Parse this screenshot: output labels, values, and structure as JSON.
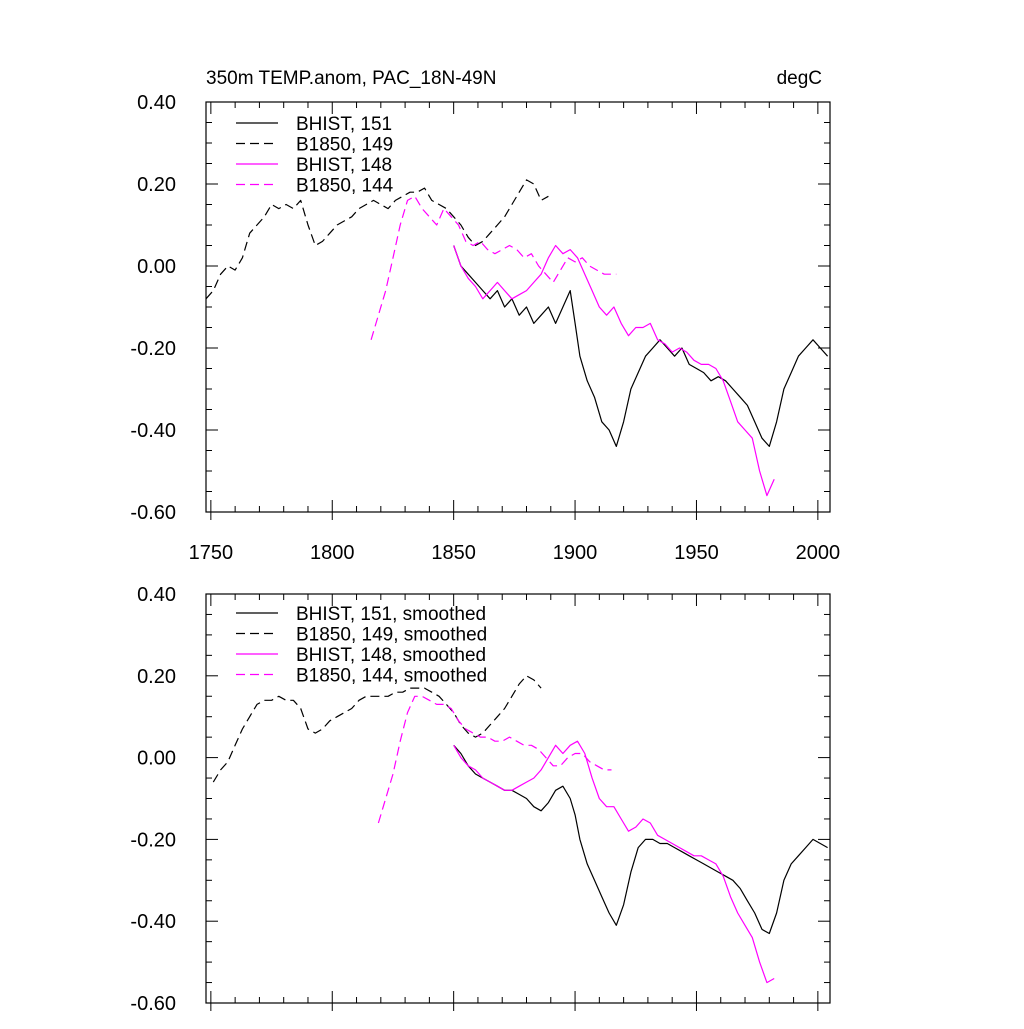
{
  "chart_data": [
    {
      "type": "line",
      "title": "350m TEMP.anom, PAC_18N-49N",
      "units": "degC",
      "xlim": [
        1748,
        2005
      ],
      "ylim": [
        -0.6,
        0.4
      ],
      "xticks": [
        "1750",
        "1800",
        "1850",
        "1900",
        "1950",
        "2000"
      ],
      "yticks": [
        "-0.60",
        "-0.40",
        "-0.20",
        "0.00",
        "0.20",
        "0.40"
      ],
      "show_xtick_labels": true,
      "legend_position": "top-left",
      "series": [
        {
          "name": "BHIST, 151",
          "color": "#000000",
          "dash": "solid",
          "x": [
            1850,
            1853,
            1856,
            1859,
            1862,
            1865,
            1868,
            1871,
            1874,
            1877,
            1880,
            1883,
            1886,
            1889,
            1892,
            1895,
            1898,
            1900,
            1902,
            1905,
            1908,
            1911,
            1914,
            1917,
            1920,
            1923,
            1926,
            1929,
            1932,
            1935,
            1938,
            1941,
            1944,
            1947,
            1950,
            1953,
            1956,
            1959,
            1962,
            1965,
            1968,
            1971,
            1974,
            1977,
            1980,
            1983,
            1986,
            1989,
            1992,
            1995,
            1998,
            2001,
            2004
          ],
          "y": [
            0.05,
            0.0,
            -0.02,
            -0.04,
            -0.06,
            -0.08,
            -0.06,
            -0.1,
            -0.08,
            -0.12,
            -0.1,
            -0.14,
            -0.12,
            -0.1,
            -0.14,
            -0.1,
            -0.06,
            -0.14,
            -0.22,
            -0.28,
            -0.32,
            -0.38,
            -0.4,
            -0.44,
            -0.38,
            -0.3,
            -0.26,
            -0.22,
            -0.2,
            -0.18,
            -0.2,
            -0.22,
            -0.2,
            -0.24,
            -0.25,
            -0.26,
            -0.28,
            -0.27,
            -0.28,
            -0.3,
            -0.32,
            -0.34,
            -0.38,
            -0.42,
            -0.44,
            -0.38,
            -0.3,
            -0.26,
            -0.22,
            -0.2,
            -0.18,
            -0.2,
            -0.22
          ]
        },
        {
          "name": "B1850, 149",
          "color": "#000000",
          "dash": "dashed",
          "x": [
            1748,
            1751,
            1754,
            1757,
            1760,
            1763,
            1766,
            1769,
            1772,
            1775,
            1778,
            1781,
            1784,
            1787,
            1790,
            1793,
            1796,
            1799,
            1802,
            1805,
            1808,
            1811,
            1814,
            1817,
            1820,
            1823,
            1826,
            1829,
            1832,
            1835,
            1838,
            1841,
            1844,
            1847,
            1850,
            1853,
            1856,
            1859,
            1862,
            1865,
            1868,
            1871,
            1874,
            1877,
            1880,
            1883,
            1886,
            1889
          ],
          "y": [
            -0.08,
            -0.06,
            -0.02,
            0.0,
            -0.01,
            0.02,
            0.08,
            0.1,
            0.12,
            0.15,
            0.14,
            0.15,
            0.14,
            0.16,
            0.1,
            0.05,
            0.06,
            0.08,
            0.1,
            0.11,
            0.12,
            0.14,
            0.15,
            0.16,
            0.15,
            0.14,
            0.16,
            0.17,
            0.18,
            0.18,
            0.19,
            0.16,
            0.15,
            0.14,
            0.12,
            0.1,
            0.07,
            0.05,
            0.06,
            0.08,
            0.1,
            0.12,
            0.15,
            0.18,
            0.21,
            0.2,
            0.16,
            0.17
          ]
        },
        {
          "name": "BHIST, 148",
          "color": "#ff00ff",
          "dash": "solid",
          "x": [
            1850,
            1853,
            1856,
            1859,
            1862,
            1865,
            1868,
            1871,
            1874,
            1877,
            1880,
            1883,
            1886,
            1889,
            1892,
            1895,
            1898,
            1901,
            1904,
            1907,
            1910,
            1913,
            1916,
            1919,
            1922,
            1925,
            1928,
            1931,
            1934,
            1937,
            1940,
            1943,
            1946,
            1949,
            1952,
            1955,
            1958,
            1961,
            1964,
            1967,
            1970,
            1973,
            1976,
            1979,
            1982
          ],
          "y": [
            0.05,
            0.0,
            -0.03,
            -0.05,
            -0.08,
            -0.06,
            -0.04,
            -0.06,
            -0.08,
            -0.07,
            -0.06,
            -0.04,
            -0.02,
            0.02,
            0.05,
            0.03,
            0.04,
            0.02,
            -0.02,
            -0.06,
            -0.1,
            -0.12,
            -0.1,
            -0.14,
            -0.17,
            -0.15,
            -0.15,
            -0.14,
            -0.18,
            -0.19,
            -0.21,
            -0.2,
            -0.21,
            -0.23,
            -0.24,
            -0.24,
            -0.25,
            -0.28,
            -0.33,
            -0.38,
            -0.4,
            -0.42,
            -0.5,
            -0.56,
            -0.52
          ]
        },
        {
          "name": "B1850, 144",
          "color": "#ff00ff",
          "dash": "dashed",
          "x": [
            1816,
            1819,
            1822,
            1825,
            1828,
            1831,
            1834,
            1837,
            1840,
            1843,
            1846,
            1849,
            1852,
            1855,
            1858,
            1861,
            1864,
            1867,
            1870,
            1873,
            1876,
            1879,
            1882,
            1885,
            1888,
            1891,
            1894,
            1897,
            1900,
            1903,
            1906,
            1909,
            1912,
            1915,
            1917
          ],
          "y": [
            -0.18,
            -0.12,
            -0.06,
            0.02,
            0.1,
            0.16,
            0.17,
            0.14,
            0.12,
            0.1,
            0.14,
            0.12,
            0.1,
            0.06,
            0.05,
            0.06,
            0.04,
            0.03,
            0.04,
            0.05,
            0.04,
            0.02,
            0.03,
            0.0,
            -0.02,
            -0.04,
            -0.01,
            0.02,
            0.01,
            0.02,
            0.0,
            -0.01,
            -0.02,
            -0.02,
            -0.02
          ]
        }
      ]
    },
    {
      "type": "line",
      "title": "",
      "units": "",
      "xlim": [
        1748,
        2005
      ],
      "ylim": [
        -0.6,
        0.4
      ],
      "xticks": [
        "1750",
        "1800",
        "1850",
        "1900",
        "1950",
        "2000"
      ],
      "yticks": [
        "-0.60",
        "-0.40",
        "-0.20",
        "0.00",
        "0.20",
        "0.40"
      ],
      "show_xtick_labels": false,
      "legend_position": "top-left",
      "series": [
        {
          "name": "BHIST, 151, smoothed",
          "color": "#000000",
          "dash": "solid",
          "x": [
            1850,
            1853,
            1856,
            1859,
            1862,
            1865,
            1868,
            1871,
            1874,
            1877,
            1880,
            1883,
            1886,
            1889,
            1892,
            1895,
            1898,
            1900,
            1902,
            1905,
            1908,
            1911,
            1914,
            1917,
            1920,
            1923,
            1926,
            1929,
            1932,
            1935,
            1938,
            1941,
            1944,
            1947,
            1950,
            1953,
            1956,
            1959,
            1962,
            1965,
            1968,
            1971,
            1974,
            1977,
            1980,
            1983,
            1986,
            1989,
            1992,
            1995,
            1998,
            2001,
            2004
          ],
          "y": [
            0.03,
            0.01,
            -0.02,
            -0.04,
            -0.05,
            -0.06,
            -0.07,
            -0.08,
            -0.08,
            -0.09,
            -0.1,
            -0.12,
            -0.13,
            -0.11,
            -0.08,
            -0.07,
            -0.1,
            -0.14,
            -0.2,
            -0.26,
            -0.3,
            -0.34,
            -0.38,
            -0.41,
            -0.36,
            -0.28,
            -0.22,
            -0.2,
            -0.2,
            -0.21,
            -0.21,
            -0.22,
            -0.23,
            -0.24,
            -0.25,
            -0.26,
            -0.27,
            -0.28,
            -0.29,
            -0.3,
            -0.32,
            -0.35,
            -0.38,
            -0.42,
            -0.43,
            -0.38,
            -0.3,
            -0.26,
            -0.24,
            -0.22,
            -0.2,
            -0.21,
            -0.22
          ]
        },
        {
          "name": "B1850, 149, smoothed",
          "color": "#000000",
          "dash": "dashed",
          "x": [
            1751,
            1754,
            1757,
            1760,
            1763,
            1766,
            1769,
            1772,
            1775,
            1778,
            1781,
            1784,
            1787,
            1790,
            1793,
            1796,
            1799,
            1802,
            1805,
            1808,
            1811,
            1814,
            1817,
            1820,
            1823,
            1826,
            1829,
            1832,
            1835,
            1838,
            1841,
            1844,
            1847,
            1850,
            1853,
            1856,
            1859,
            1862,
            1865,
            1868,
            1871,
            1874,
            1877,
            1880,
            1883,
            1886
          ],
          "y": [
            -0.06,
            -0.03,
            -0.01,
            0.03,
            0.07,
            0.1,
            0.13,
            0.14,
            0.14,
            0.15,
            0.14,
            0.14,
            0.12,
            0.07,
            0.06,
            0.07,
            0.09,
            0.1,
            0.11,
            0.12,
            0.14,
            0.15,
            0.15,
            0.15,
            0.15,
            0.16,
            0.16,
            0.17,
            0.17,
            0.17,
            0.16,
            0.15,
            0.13,
            0.11,
            0.08,
            0.06,
            0.05,
            0.06,
            0.08,
            0.1,
            0.12,
            0.15,
            0.18,
            0.2,
            0.19,
            0.17
          ]
        },
        {
          "name": "BHIST, 148, smoothed",
          "color": "#ff00ff",
          "dash": "solid",
          "x": [
            1850,
            1853,
            1856,
            1859,
            1862,
            1865,
            1868,
            1871,
            1874,
            1877,
            1880,
            1883,
            1886,
            1889,
            1892,
            1895,
            1898,
            1901,
            1904,
            1907,
            1910,
            1913,
            1916,
            1919,
            1922,
            1925,
            1928,
            1931,
            1934,
            1937,
            1940,
            1943,
            1946,
            1949,
            1952,
            1955,
            1958,
            1961,
            1964,
            1967,
            1970,
            1973,
            1976,
            1979,
            1982
          ],
          "y": [
            0.03,
            0.0,
            -0.02,
            -0.03,
            -0.05,
            -0.06,
            -0.07,
            -0.08,
            -0.08,
            -0.07,
            -0.06,
            -0.05,
            -0.03,
            0.0,
            0.03,
            0.01,
            0.03,
            0.04,
            0.01,
            -0.05,
            -0.1,
            -0.12,
            -0.12,
            -0.15,
            -0.18,
            -0.17,
            -0.15,
            -0.16,
            -0.19,
            -0.2,
            -0.21,
            -0.22,
            -0.23,
            -0.24,
            -0.24,
            -0.25,
            -0.26,
            -0.29,
            -0.34,
            -0.38,
            -0.41,
            -0.44,
            -0.5,
            -0.55,
            -0.54
          ]
        },
        {
          "name": "B1850, 144, smoothed",
          "color": "#ff00ff",
          "dash": "dashed",
          "x": [
            1819,
            1822,
            1825,
            1828,
            1831,
            1834,
            1837,
            1840,
            1843,
            1846,
            1849,
            1852,
            1855,
            1858,
            1861,
            1864,
            1867,
            1870,
            1873,
            1876,
            1879,
            1882,
            1885,
            1888,
            1891,
            1894,
            1897,
            1900,
            1903,
            1906,
            1909,
            1912,
            1915
          ],
          "y": [
            -0.16,
            -0.1,
            -0.04,
            0.04,
            0.11,
            0.15,
            0.15,
            0.14,
            0.13,
            0.13,
            0.12,
            0.09,
            0.07,
            0.06,
            0.05,
            0.05,
            0.04,
            0.04,
            0.05,
            0.04,
            0.03,
            0.03,
            0.02,
            0.0,
            -0.02,
            -0.02,
            -0.0,
            0.01,
            0.01,
            -0.01,
            -0.02,
            -0.03,
            -0.03
          ]
        }
      ]
    }
  ]
}
